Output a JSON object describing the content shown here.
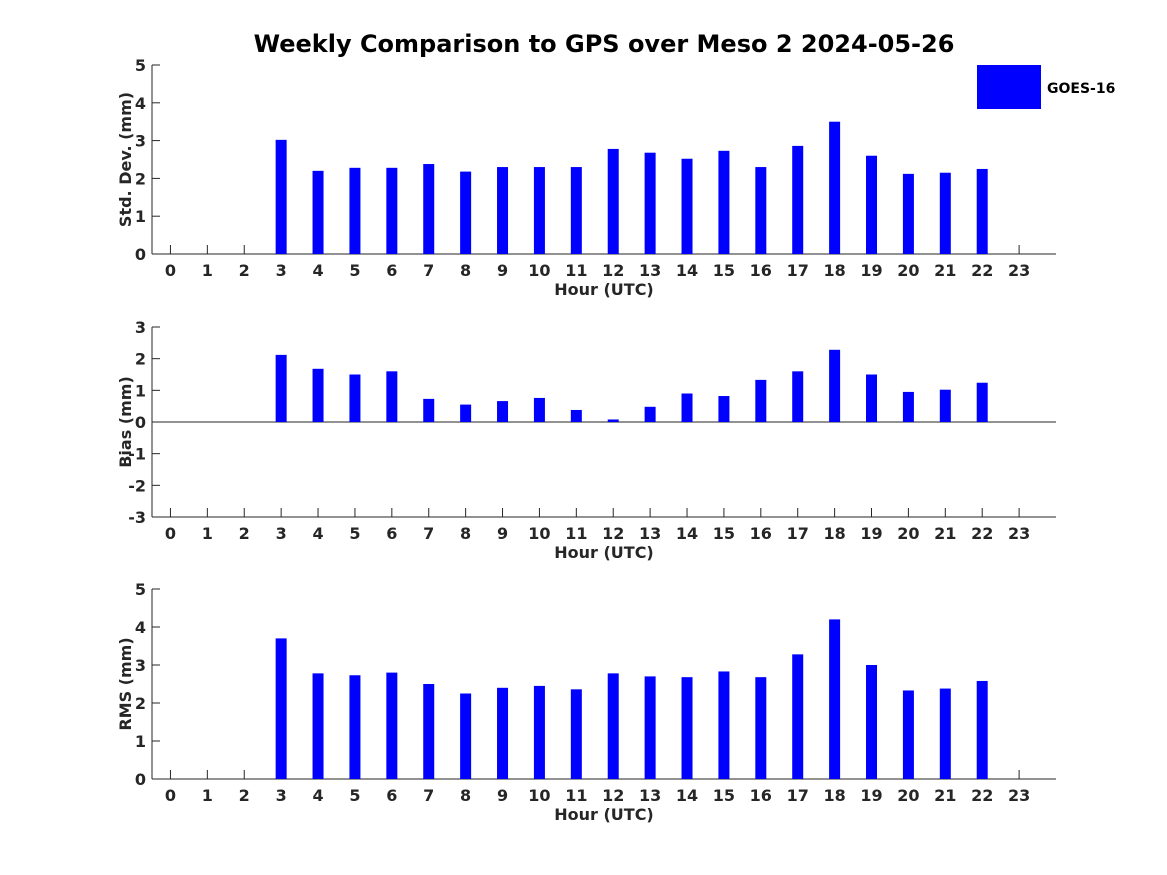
{
  "title": "Weekly Comparison to GPS over Meso 2 2024-05-26",
  "legend": {
    "label": "GOES-16",
    "color": "#0000ff"
  },
  "chart_data": [
    {
      "type": "bar",
      "xlabel": "Hour (UTC)",
      "ylabel": "Std. Dev. (mm)",
      "ylim": [
        0,
        5
      ],
      "yticks": [
        0,
        1,
        2,
        3,
        4,
        5
      ],
      "categories": [
        0,
        1,
        2,
        3,
        4,
        5,
        6,
        7,
        8,
        9,
        10,
        11,
        12,
        13,
        14,
        15,
        16,
        17,
        18,
        19,
        20,
        21,
        22,
        23
      ],
      "series": [
        {
          "name": "GOES-16",
          "color": "#0000ff",
          "values": [
            null,
            null,
            null,
            3.02,
            2.2,
            2.28,
            2.28,
            2.38,
            2.18,
            2.3,
            2.3,
            2.3,
            2.78,
            2.68,
            2.52,
            2.73,
            2.3,
            2.86,
            3.5,
            2.6,
            2.12,
            2.15,
            2.25,
            null
          ]
        }
      ]
    },
    {
      "type": "bar",
      "xlabel": "Hour (UTC)",
      "ylabel": "Bias (mm)",
      "ylim": [
        -3,
        3
      ],
      "yticks": [
        -3,
        -2,
        -1,
        0,
        1,
        2,
        3
      ],
      "categories": [
        0,
        1,
        2,
        3,
        4,
        5,
        6,
        7,
        8,
        9,
        10,
        11,
        12,
        13,
        14,
        15,
        16,
        17,
        18,
        19,
        20,
        21,
        22,
        23
      ],
      "series": [
        {
          "name": "GOES-16",
          "color": "#0000ff",
          "values": [
            null,
            null,
            null,
            2.12,
            1.68,
            1.5,
            1.6,
            0.73,
            0.55,
            0.66,
            0.76,
            0.38,
            0.08,
            0.48,
            0.9,
            0.82,
            1.33,
            1.6,
            2.28,
            1.5,
            0.95,
            1.02,
            1.24,
            null
          ]
        }
      ]
    },
    {
      "type": "bar",
      "xlabel": "Hour (UTC)",
      "ylabel": "RMS (mm)",
      "ylim": [
        0,
        5
      ],
      "yticks": [
        0,
        1,
        2,
        3,
        4,
        5
      ],
      "categories": [
        0,
        1,
        2,
        3,
        4,
        5,
        6,
        7,
        8,
        9,
        10,
        11,
        12,
        13,
        14,
        15,
        16,
        17,
        18,
        19,
        20,
        21,
        22,
        23
      ],
      "series": [
        {
          "name": "GOES-16",
          "color": "#0000ff",
          "values": [
            null,
            null,
            null,
            3.7,
            2.78,
            2.73,
            2.8,
            2.5,
            2.25,
            2.4,
            2.45,
            2.36,
            2.78,
            2.7,
            2.68,
            2.83,
            2.68,
            3.28,
            4.2,
            3.0,
            2.33,
            2.38,
            2.58,
            null
          ]
        }
      ]
    }
  ]
}
